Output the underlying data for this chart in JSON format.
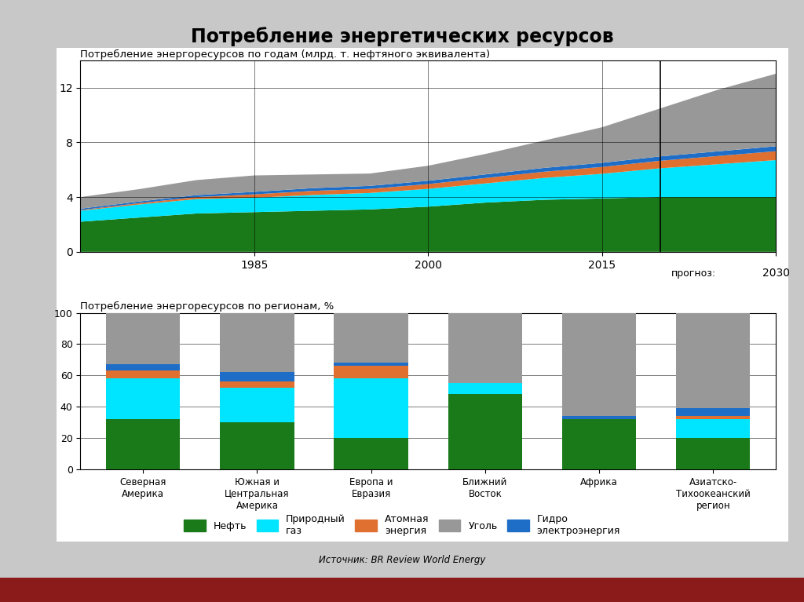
{
  "title": "Потребление энергетических ресурсов",
  "chart1_title": "Потребление энергоресурсов по годам (млрд. т. нефтяного эквивалента)",
  "chart2_title": "Потребление энергоресурсов по регионам, %",
  "source": "Источник: BR Review World Energy",
  "years": [
    1970,
    1975,
    1980,
    1985,
    1990,
    1995,
    2000,
    2005,
    2010,
    2015,
    2020,
    2025,
    2030
  ],
  "oil": [
    2.2,
    2.5,
    2.8,
    2.9,
    3.0,
    3.1,
    3.3,
    3.6,
    3.8,
    3.9,
    4.0,
    4.0,
    4.0
  ],
  "gas": [
    0.8,
    0.95,
    1.05,
    1.05,
    1.15,
    1.2,
    1.3,
    1.4,
    1.6,
    1.8,
    2.1,
    2.4,
    2.7
  ],
  "nuclear": [
    0.05,
    0.1,
    0.15,
    0.25,
    0.3,
    0.3,
    0.35,
    0.4,
    0.45,
    0.5,
    0.55,
    0.6,
    0.65
  ],
  "hydro": [
    0.1,
    0.12,
    0.14,
    0.18,
    0.2,
    0.22,
    0.24,
    0.26,
    0.28,
    0.3,
    0.32,
    0.34,
    0.36
  ],
  "coal": [
    0.85,
    0.9,
    1.1,
    1.2,
    1.0,
    0.9,
    1.1,
    1.5,
    2.0,
    2.6,
    3.5,
    4.5,
    5.3
  ],
  "regions": [
    "Северная\nАмерика",
    "Южная и\nЦентральная\nАмерика",
    "Европа и\nЕвразия",
    "Ближний\nВосток",
    "Африка",
    "Азиатско-\nТихоокеанский\nрегион"
  ],
  "reg_oil": [
    32,
    30,
    20,
    48,
    32,
    20
  ],
  "reg_gas": [
    26,
    22,
    38,
    7,
    0,
    12
  ],
  "reg_nuclear": [
    5,
    4,
    8,
    0,
    0,
    2
  ],
  "reg_hydro": [
    4,
    6,
    2,
    0,
    2,
    5
  ],
  "reg_coal": [
    33,
    38,
    32,
    45,
    66,
    61
  ],
  "colors": {
    "oil": "#1a7a1a",
    "gas": "#00e5ff",
    "nuclear": "#e07030",
    "hydro": "#1e6ec8",
    "coal": "#989898"
  },
  "legend_labels": {
    "oil": "Нефть",
    "gas": "Природный\nгаз",
    "nuclear": "Атомная\nэнергия",
    "coal": "Уголь",
    "hydro": "Гидро\nэлектроэнергия"
  },
  "forecast_label": "прогноз:",
  "forecast_year": 2020,
  "xlim": [
    1970,
    2030
  ],
  "ylim1": [
    0,
    14
  ],
  "ylim2": [
    0,
    100
  ],
  "slide_bg": "#c8c8c8",
  "chart_bg": "#f5f5f5",
  "title_bar_color": "#8b1a1a"
}
